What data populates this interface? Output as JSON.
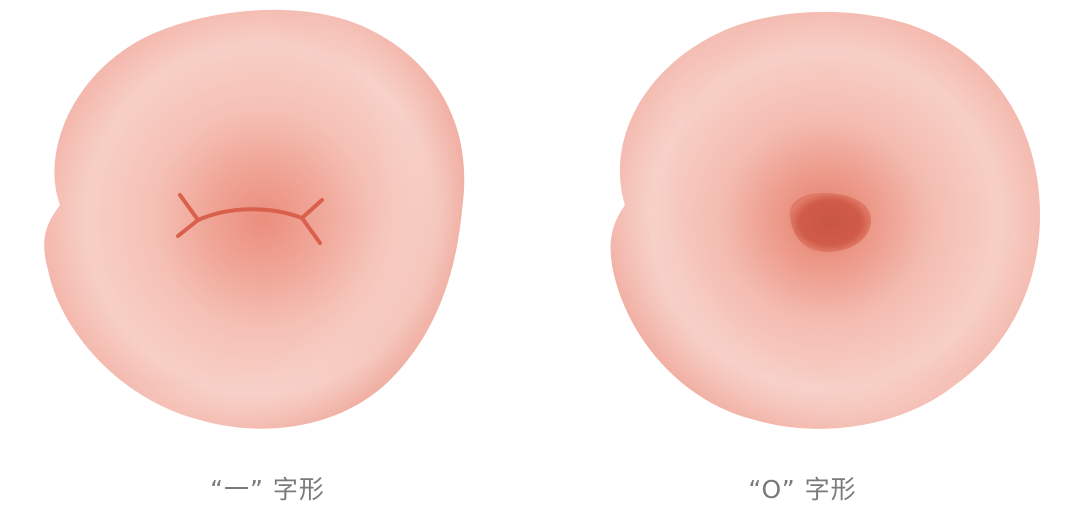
{
  "figures": [
    {
      "id": "linear-os",
      "caption": "“一” 字形",
      "colors": {
        "outer": "#f4b5aa",
        "rim": "#f7cdc4",
        "center_glow": "#e88877",
        "opening": "#d9604d"
      }
    },
    {
      "id": "round-os",
      "caption": "“O” 字形",
      "colors": {
        "outer": "#f4b5aa",
        "rim": "#f7cdc4",
        "center_glow": "#e88877",
        "opening": "#c95543"
      }
    }
  ]
}
